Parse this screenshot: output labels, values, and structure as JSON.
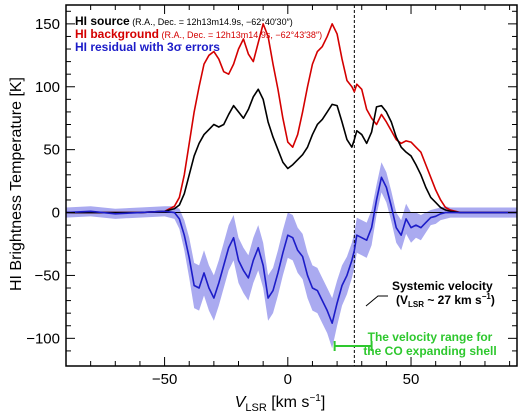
{
  "chart_data": {
    "type": "line",
    "xlabel_main": "V",
    "xlabel_sub": "LSR",
    "xlabel_unit": " [km s",
    "xlabel_exp": "−1",
    "xlabel_close": "]",
    "ylabel": "HI Brightness Temperature [K]",
    "xlim": [
      -90,
      93
    ],
    "ylim": [
      -122,
      165
    ],
    "xticks": [
      -50,
      0,
      50
    ],
    "xtick_labels": [
      "−50",
      "0",
      "50"
    ],
    "yticks": [
      -100,
      -50,
      0,
      50,
      100,
      150
    ],
    "ytick_labels": [
      "−100",
      "−50",
      "0",
      "50",
      "100",
      "150"
    ],
    "zero_line": 0,
    "systemic_velocity": 27,
    "velocity_range": [
      19,
      34
    ],
    "legend": [
      {
        "prefix": "HI",
        "label": " source",
        "coords": " (R.A., Dec. = 12h13m14.9s, −62°40′30″)",
        "color": "#000000"
      },
      {
        "prefix": "HI",
        "label": " background",
        "coords": " (R.A., Dec. = 12h13m14.9s, −62°43′38″)",
        "color": "#d40000"
      },
      {
        "prefix": "HI",
        "label": " residual with 3σ errors",
        "coords": "",
        "color": "#1c1cc8"
      }
    ],
    "annotations": {
      "systemic_title": "Systemic velocity",
      "systemic_value": "(V",
      "systemic_sub": "LSR",
      "systemic_rest": " ~ 27 km s",
      "systemic_exp": "−1",
      "systemic_close": ")",
      "range_line1": "The velocity range for",
      "range_line2": "the CO expanding shell"
    },
    "colors": {
      "source": "#000000",
      "background": "#d40000",
      "residual": "#1c1cc8",
      "error_band": "#aaaaf0",
      "range": "#2ec82e"
    },
    "series": [
      {
        "name": "HI source",
        "x": [
          -90,
          -60,
          -50,
          -46,
          -44,
          -42,
          -40,
          -38,
          -36,
          -34,
          -32,
          -30,
          -28,
          -26,
          -24,
          -22,
          -20,
          -18,
          -16,
          -14,
          -12,
          -10,
          -8,
          -6,
          -4,
          -2,
          0,
          2,
          4,
          6,
          8,
          10,
          12,
          14,
          16,
          18,
          20,
          22,
          24,
          26,
          27,
          28,
          30,
          32,
          34,
          36,
          38,
          40,
          42,
          44,
          46,
          48,
          50,
          52,
          54,
          56,
          58,
          60,
          62,
          64,
          66,
          70,
          80,
          93
        ],
        "values": [
          0,
          0,
          1,
          3,
          6,
          15,
          30,
          45,
          55,
          62,
          66,
          70,
          68,
          70,
          78,
          85,
          80,
          75,
          82,
          92,
          98,
          90,
          72,
          60,
          50,
          40,
          35,
          38,
          42,
          46,
          52,
          62,
          70,
          74,
          80,
          86,
          85,
          72,
          58,
          52,
          58,
          65,
          62,
          55,
          64,
          84,
          85,
          80,
          72,
          60,
          52,
          48,
          45,
          38,
          30,
          20,
          12,
          8,
          4,
          2,
          1,
          0,
          0,
          0
        ]
      },
      {
        "name": "HI background",
        "x": [
          -90,
          -60,
          -50,
          -46,
          -44,
          -42,
          -40,
          -38,
          -36,
          -34,
          -32,
          -30,
          -28,
          -26,
          -24,
          -22,
          -20,
          -18,
          -16,
          -14,
          -12,
          -10,
          -8,
          -6,
          -4,
          -2,
          0,
          2,
          4,
          6,
          8,
          10,
          12,
          14,
          16,
          18,
          20,
          22,
          24,
          26,
          27,
          28,
          30,
          32,
          34,
          36,
          38,
          40,
          42,
          44,
          46,
          48,
          50,
          52,
          54,
          56,
          58,
          60,
          62,
          64,
          66,
          70,
          80,
          93
        ],
        "values": [
          0,
          0,
          1,
          5,
          12,
          30,
          55,
          80,
          100,
          118,
          125,
          128,
          122,
          112,
          110,
          118,
          130,
          138,
          126,
          120,
          135,
          150,
          140,
          118,
          98,
          75,
          56,
          52,
          62,
          80,
          100,
          118,
          128,
          132,
          140,
          150,
          142,
          122,
          105,
          100,
          96,
          102,
          98,
          82,
          75,
          70,
          78,
          72,
          65,
          58,
          55,
          57,
          56,
          52,
          48,
          38,
          28,
          18,
          10,
          4,
          2,
          0,
          0,
          0
        ]
      },
      {
        "name": "HI residual",
        "x": [
          -90,
          -80,
          -70,
          -60,
          -50,
          -46,
          -44,
          -42,
          -40,
          -38,
          -36,
          -34,
          -32,
          -30,
          -28,
          -26,
          -24,
          -22,
          -20,
          -18,
          -16,
          -14,
          -12,
          -10,
          -8,
          -6,
          -4,
          -2,
          0,
          2,
          4,
          6,
          8,
          10,
          12,
          14,
          16,
          18,
          20,
          22,
          24,
          26,
          27,
          28,
          30,
          32,
          34,
          36,
          38,
          40,
          42,
          44,
          46,
          48,
          50,
          52,
          54,
          56,
          58,
          60,
          62,
          64,
          66,
          70,
          80,
          93
        ],
        "values": [
          0,
          1,
          -1,
          0,
          1,
          0,
          -5,
          -18,
          -36,
          -58,
          -60,
          -48,
          -60,
          -68,
          -56,
          -42,
          -28,
          -20,
          -38,
          -46,
          -52,
          -38,
          -28,
          -42,
          -68,
          -62,
          -48,
          -32,
          -18,
          -20,
          -30,
          -35,
          -50,
          -60,
          -62,
          -70,
          -78,
          -88,
          -72,
          -58,
          -50,
          -38,
          -30,
          -18,
          -20,
          -22,
          -12,
          10,
          28,
          20,
          5,
          -12,
          -18,
          -5,
          -12,
          -10,
          -12,
          -8,
          -4,
          -3,
          -1,
          0,
          0,
          0,
          0,
          0
        ],
        "errors": [
          4,
          4,
          4,
          4,
          4,
          5,
          8,
          12,
          16,
          18,
          18,
          18,
          18,
          18,
          18,
          18,
          18,
          18,
          18,
          18,
          18,
          18,
          18,
          18,
          18,
          18,
          18,
          18,
          18,
          18,
          18,
          18,
          18,
          18,
          18,
          18,
          18,
          20,
          18,
          16,
          15,
          14,
          14,
          14,
          14,
          14,
          14,
          12,
          12,
          12,
          12,
          12,
          12,
          12,
          12,
          10,
          10,
          8,
          6,
          6,
          5,
          5,
          4,
          4,
          4,
          4
        ]
      }
    ]
  }
}
